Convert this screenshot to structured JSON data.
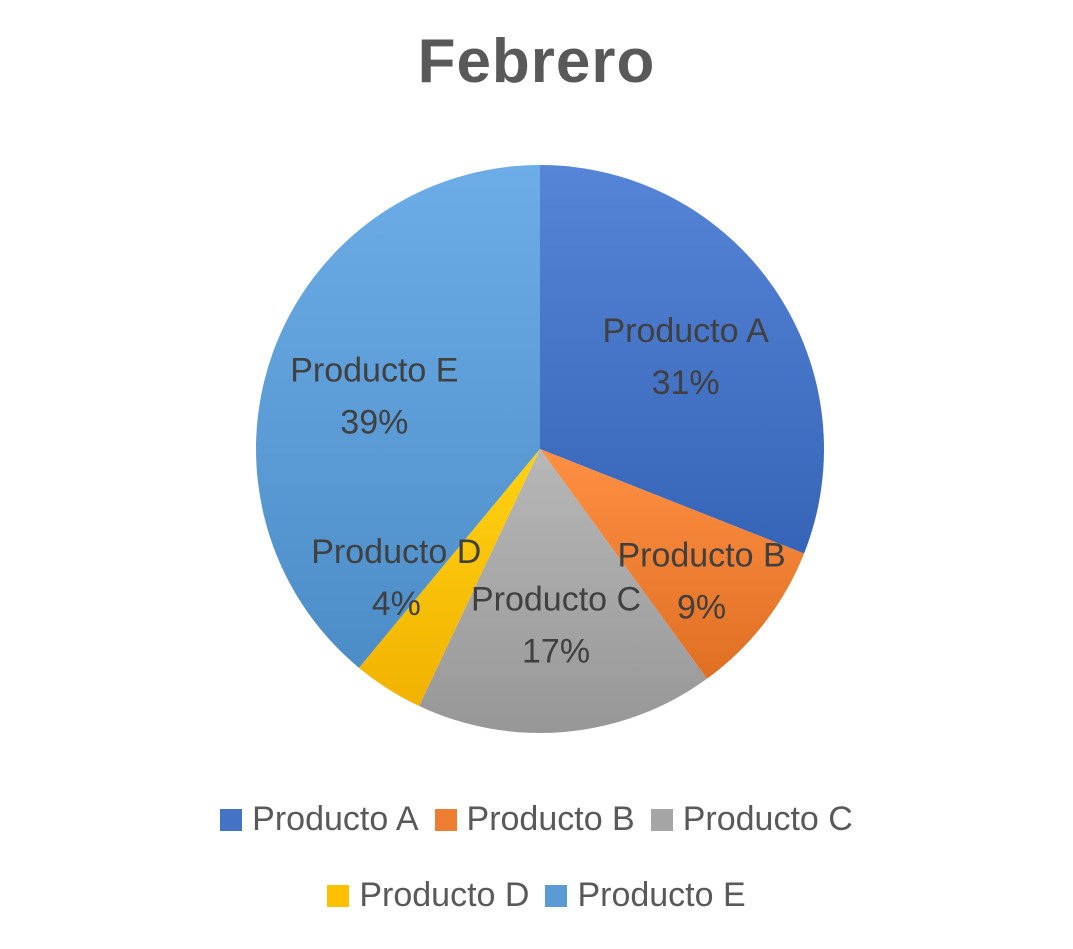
{
  "chart_data": {
    "type": "pie",
    "title": "Febrero",
    "categories": [
      "Producto A",
      "Producto B",
      "Producto C",
      "Producto D",
      "Producto E"
    ],
    "values": [
      31,
      9,
      17,
      4,
      39
    ],
    "value_labels": [
      "31%",
      "9%",
      "17%",
      "4%",
      "39%"
    ],
    "colors": [
      "#4472C4",
      "#ED7D31",
      "#A5A5A5",
      "#FFC000",
      "#5B9BD5"
    ],
    "legend_position": "bottom",
    "start_angle": "top",
    "direction": "clockwise",
    "data_labels": "inside, category and percent"
  },
  "legend": {
    "rows": [
      [
        "Producto A",
        "Producto B",
        "Producto C"
      ],
      [
        "Producto D",
        "Producto E"
      ]
    ]
  }
}
